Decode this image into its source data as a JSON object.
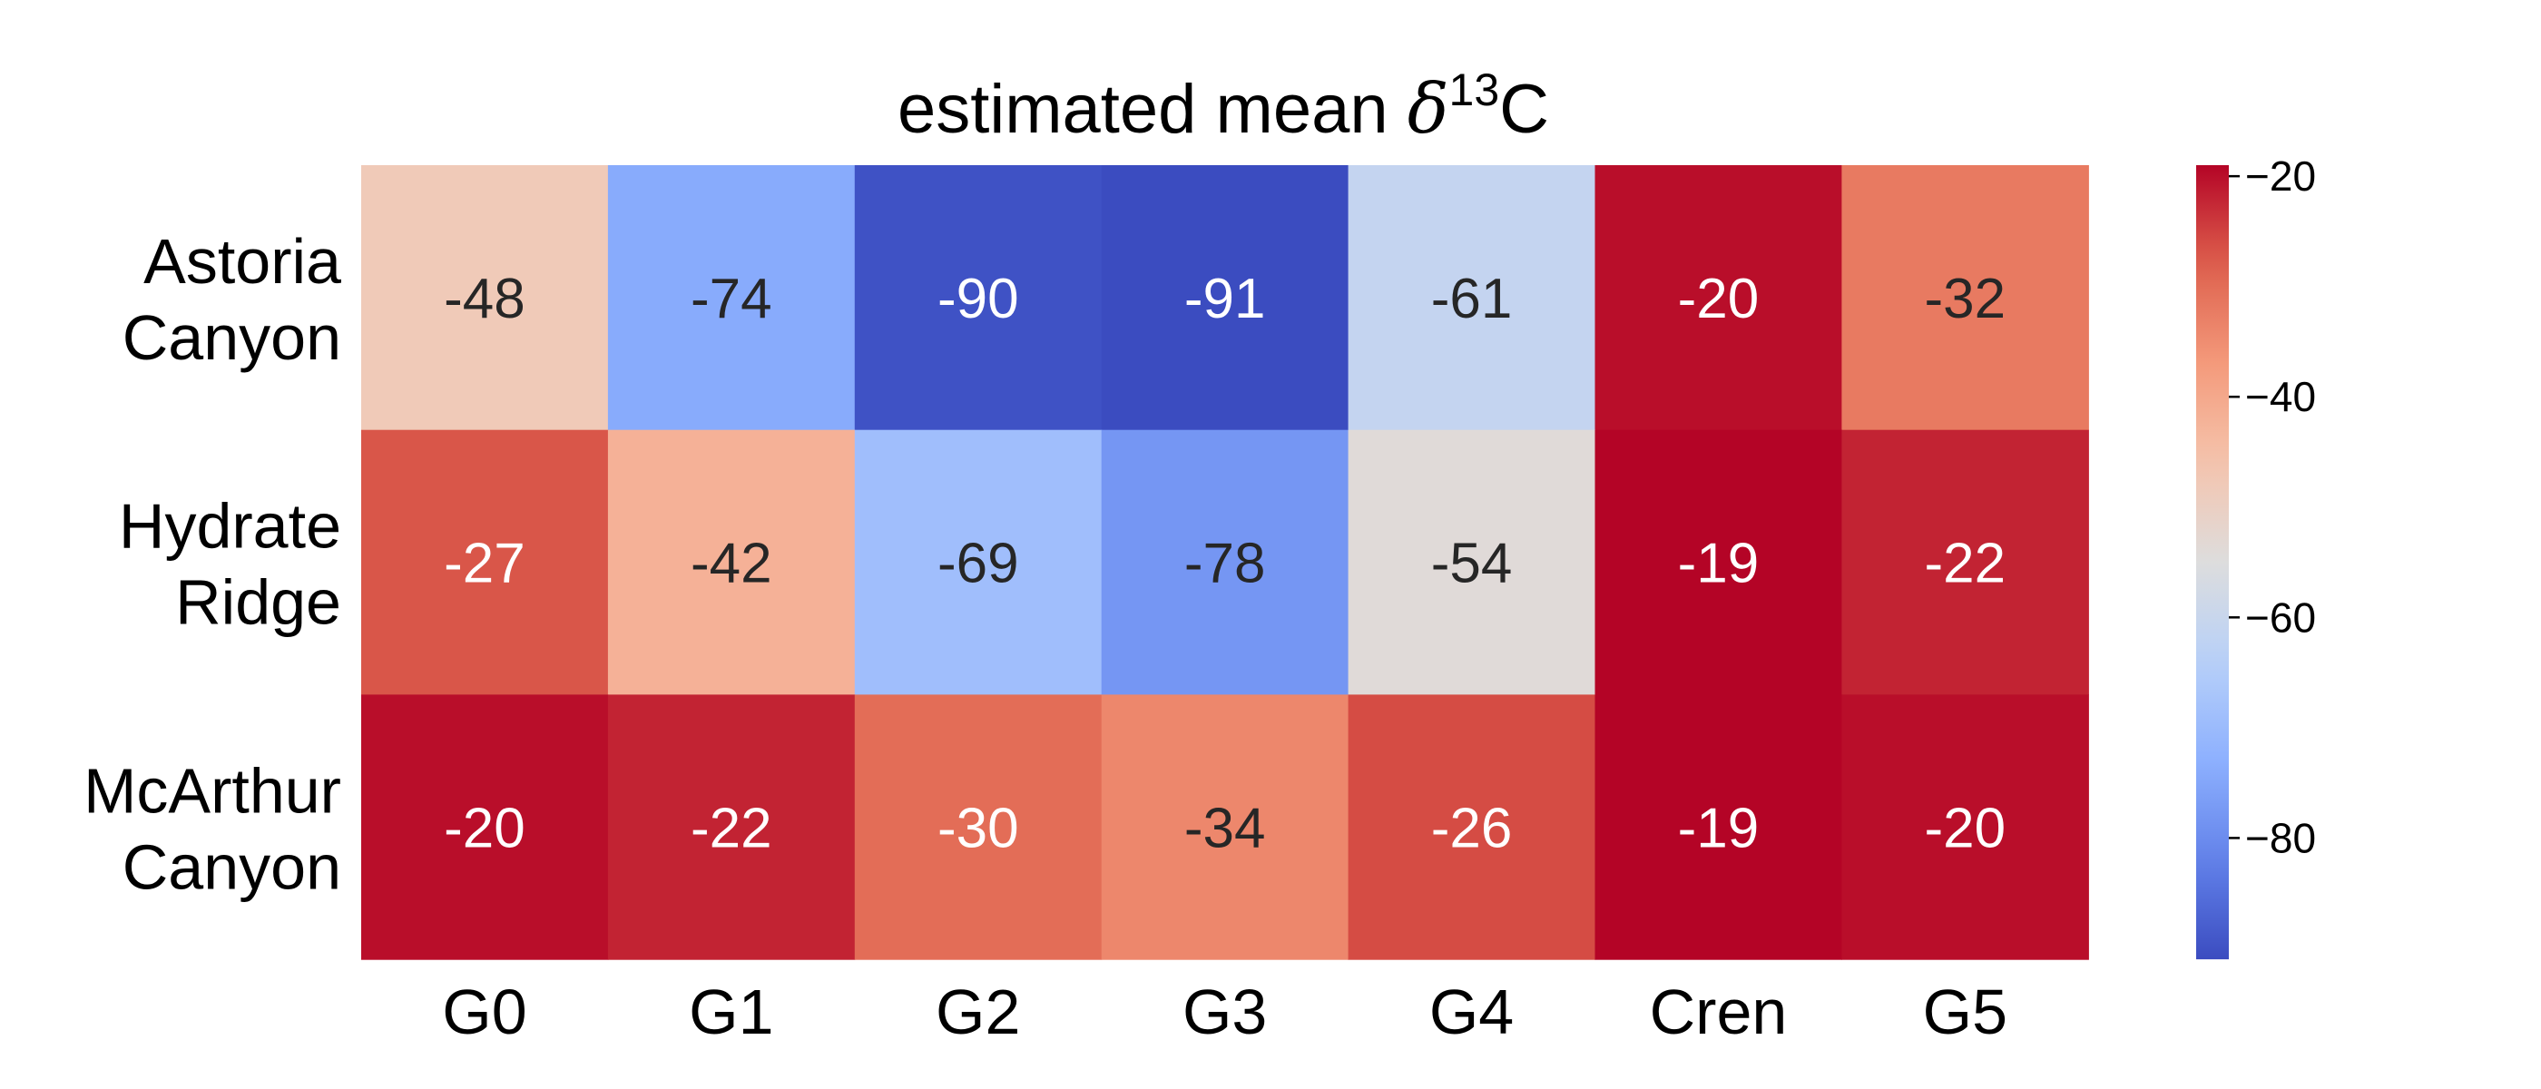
{
  "chart_data": {
    "type": "heatmap",
    "title": {
      "prefix": "estimated mean ",
      "symbol": "δ",
      "superscript": "13",
      "suffix": "C"
    },
    "rows": [
      [
        "Astoria",
        "Canyon"
      ],
      [
        "Hydrate",
        "Ridge"
      ],
      [
        "McArthur",
        "Canyon"
      ]
    ],
    "columns": [
      "G0",
      "G1",
      "G2",
      "G3",
      "G4",
      "Cren",
      "G5"
    ],
    "values": [
      [
        -48,
        -74,
        -90,
        -91,
        -61,
        -20,
        -32
      ],
      [
        -27,
        -42,
        -69,
        -78,
        -54,
        -19,
        -22
      ],
      [
        -20,
        -22,
        -30,
        -34,
        -26,
        -19,
        -20
      ]
    ],
    "colormap": "coolwarm",
    "color_range": [
      -91,
      -19
    ],
    "colorbar": {
      "ticks": [
        -20,
        -40,
        -60,
        -80
      ],
      "tick_labels": [
        "−20",
        "−40",
        "−60",
        "−80"
      ]
    },
    "annotation_colors": {
      "dark": "#262626",
      "light": "#ffffff"
    },
    "grid": false,
    "legend": "colorbar-right"
  }
}
